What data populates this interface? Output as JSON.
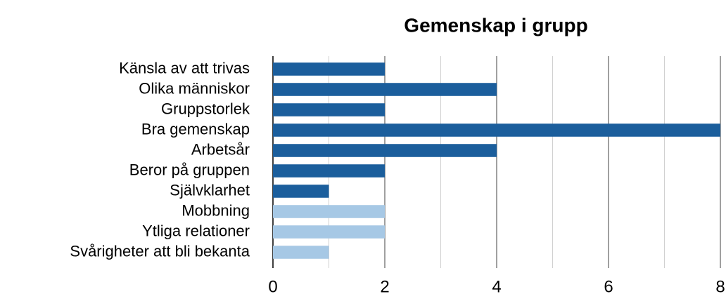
{
  "chart_data": {
    "type": "barh",
    "title": "Gemenskap i grupp",
    "categories": [
      "Känsla av att trivas",
      "Olika människor",
      "Gruppstorlek",
      "Bra gemenskap",
      "Arbetsår",
      "Beror på gruppen ",
      "Självklarhet",
      "Mobbning",
      "Ytliga relationer",
      "Svårigheter att bli bekanta"
    ],
    "values": [
      2,
      4,
      2,
      8,
      4,
      2,
      1,
      2,
      2,
      1
    ],
    "colors": [
      "#1b5e9c",
      "#1b5e9c",
      "#1b5e9c",
      "#1b5e9c",
      "#1b5e9c",
      "#1b5e9c",
      "#1b5e9c",
      "#a6c8e5",
      "#a6c8e5",
      "#a6c8e5"
    ],
    "xlim": [
      0,
      8
    ],
    "xticks": [
      0,
      2,
      4,
      6,
      8
    ],
    "minor_xticks": [
      1,
      3,
      5,
      7
    ],
    "grid": true
  }
}
